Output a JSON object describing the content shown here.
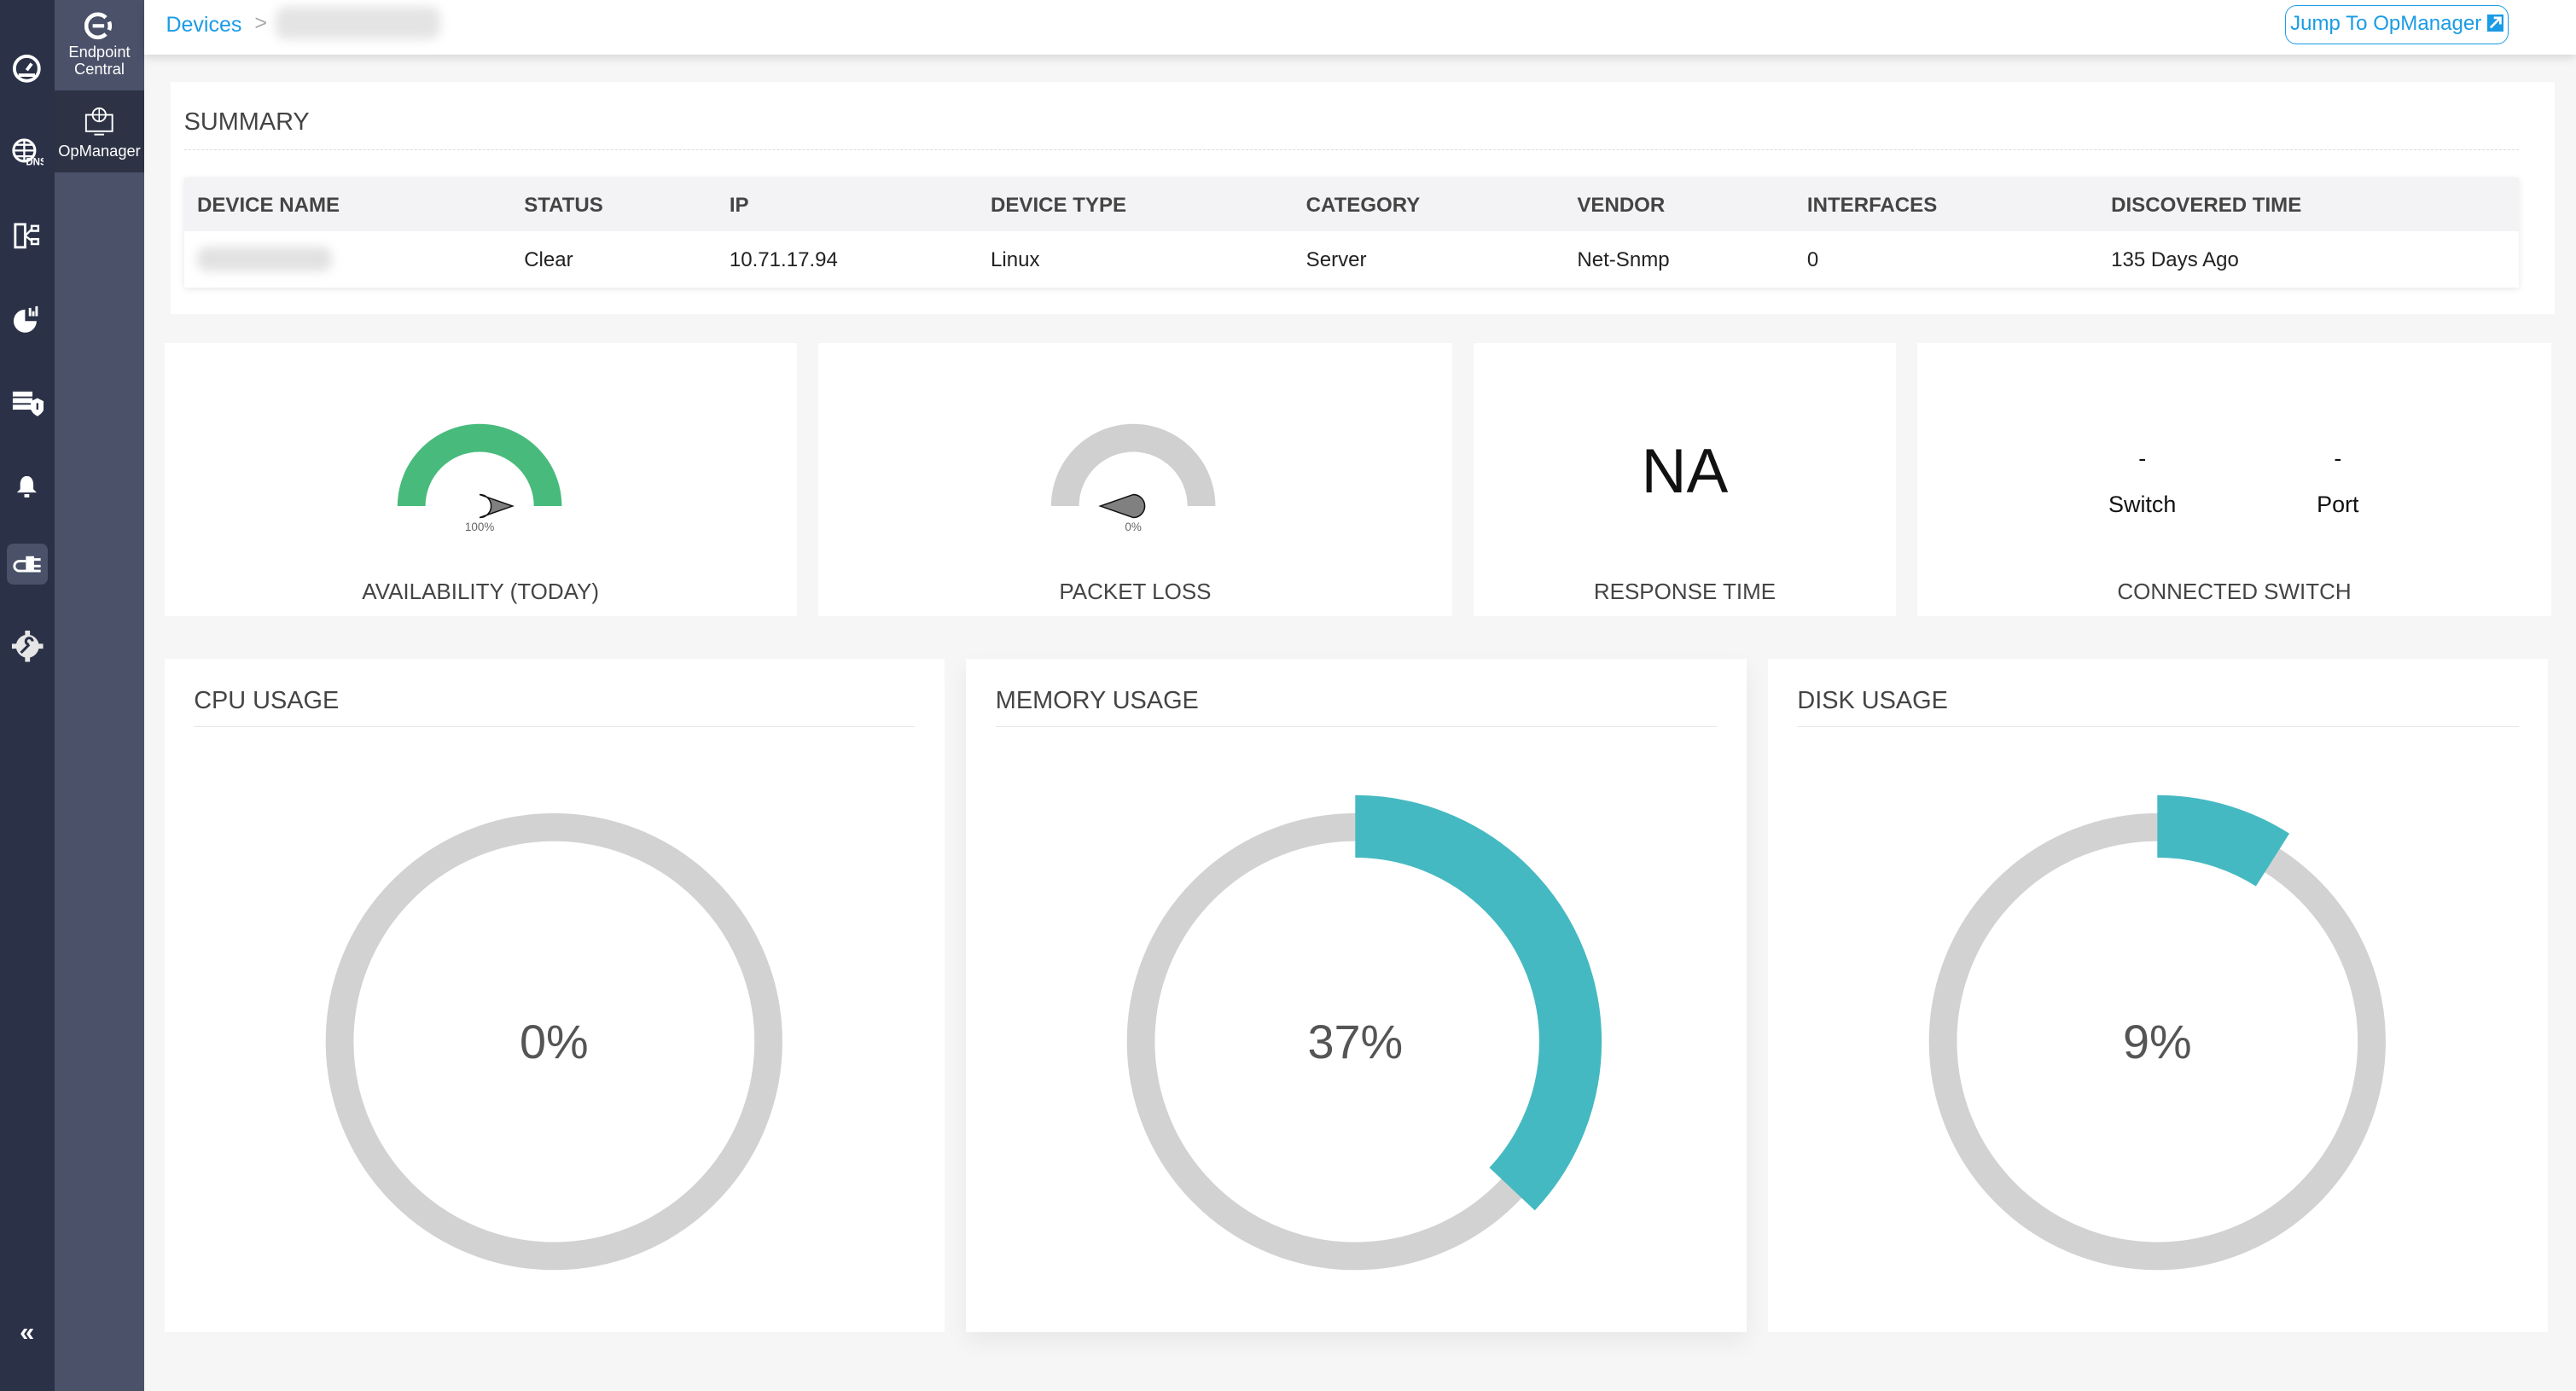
{
  "sidebar": {
    "rail_icons": [
      "dashboard-icon",
      "dns-icon",
      "network-topology-icon",
      "reports-icon",
      "server-security-icon",
      "alarm-bell-icon",
      "plugin-icon",
      "settings-icon"
    ],
    "collapse_icon": "double-chevron-left-icon",
    "products": [
      {
        "label_line1": "Endpoint",
        "label_line2": "Central",
        "icon": "endpoint-central-logo"
      },
      {
        "label": "OpManager",
        "icon": "monitor-globe-icon"
      }
    ]
  },
  "header": {
    "breadcrumb_root": "Devices",
    "separator": ">",
    "jump_button": "Jump To OpManager",
    "jump_icon": "external-link-icon"
  },
  "summary": {
    "title": "SUMMARY",
    "columns": [
      "DEVICE NAME",
      "STATUS",
      "IP",
      "DEVICE TYPE",
      "CATEGORY",
      "VENDOR",
      "INTERFACES",
      "DISCOVERED TIME"
    ],
    "row": {
      "status": "Clear",
      "ip": "10.71.17.94",
      "device_type": "Linux",
      "category": "Server",
      "vendor": "Net-Snmp",
      "interfaces": "0",
      "discovered": "135 Days Ago"
    }
  },
  "availability": {
    "label": "AVAILABILITY (TODAY)",
    "value_text": "100%",
    "value": 100,
    "color": "#48bb7c"
  },
  "packet_loss": {
    "label": "PACKET LOSS",
    "value_text": "0%",
    "value": 0
  },
  "response_time": {
    "label": "RESPONSE TIME",
    "value": "NA"
  },
  "connected_switch": {
    "label": "CONNECTED SWITCH",
    "switch_value": "-",
    "switch_label": "Switch",
    "port_value": "-",
    "port_label": "Port"
  },
  "usage": [
    {
      "title": "CPU USAGE",
      "value_text": "0%",
      "percent": 0
    },
    {
      "title": "MEMORY USAGE",
      "value_text": "37%",
      "percent": 37
    },
    {
      "title": "DISK USAGE",
      "value_text": "9%",
      "percent": 9
    }
  ],
  "colors": {
    "accent": "#1a9be6",
    "usage_arc": "#45b9c1",
    "ring": "#d2d2d2"
  }
}
